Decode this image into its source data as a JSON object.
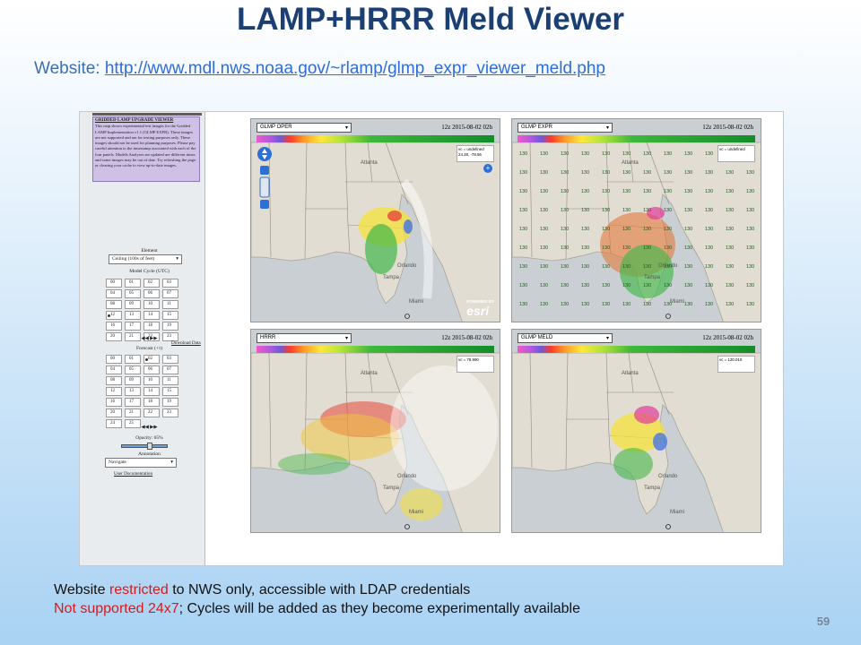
{
  "slide": {
    "title": "LAMP+HRRR Meld Viewer",
    "website_label": "Website: ",
    "website_url": "http://www.mdl.nws.noaa.gov/~rlamp/glmp_expr_viewer_meld.php",
    "page_number": "59"
  },
  "footer": {
    "line1_pre": "Website ",
    "line1_red": "restricted",
    "line1_post": " to NWS only, accessible with LDAP credentials",
    "line2_red": "Not supported 24x7",
    "line2_post": "; Cycles will be added as they become experimentally available"
  },
  "viewer": {
    "sidebar": {
      "info_title": "GRIDDED LAMP UPGRADE VIEWER",
      "info_text": "This map shows experimental test images for the Gridded LAMP Implementation v1.1 (GLMP EXPR). These images are not supported and are for testing purposes only. These images should not be used for planning purposes. Please pay careful attention to the timestamp associated with each of the four panels. Models Analyses are updated are different times and some images may be out of date. Try refreshing the page or clearing your cache to view up-to-date images.",
      "element_label": "Element",
      "element_value": "Ceiling (100s of feet)",
      "model_cycle_label": "Model Cycle (UTC)",
      "model_cycle_cells": [
        "00",
        "01",
        "02",
        "03",
        "04",
        "05",
        "06",
        "07",
        "08",
        "09",
        "10",
        "11",
        "12",
        "13",
        "14",
        "15",
        "16",
        "17",
        "18",
        "19",
        "20",
        "21",
        "22",
        "23"
      ],
      "model_cycle_selected": "12",
      "arrows": "◀◀  ▶▶",
      "download_label": "Download Data",
      "forecast_label": "Forecast (+τ)",
      "forecast_cells": [
        "00",
        "01",
        "02",
        "03",
        "04",
        "05",
        "06",
        "07",
        "08",
        "09",
        "10",
        "11",
        "12",
        "13",
        "14",
        "15",
        "16",
        "17",
        "18",
        "19",
        "20",
        "21",
        "22",
        "23",
        "24",
        "25"
      ],
      "forecast_selected": "02",
      "opacity_label": "Opacity: 65%",
      "opacity_value": 0.65,
      "annotation_label": "Annotation",
      "annotation_value": "Navigate",
      "user_doc_label": "User Documentation"
    },
    "panels": [
      {
        "model": "GLMP OPER",
        "time": "12z 2015-08-02 02h",
        "readout": "vc = undefined\n24.28, -78.56",
        "esri": true
      },
      {
        "model": "GLMP EXPR",
        "time": "12z 2015-08-02 02h",
        "readout": "vc = undefined",
        "esri": false
      },
      {
        "model": "HRRR",
        "time": "12z 2015-08-02 02h",
        "readout": "vc = 78.990",
        "esri": false
      },
      {
        "model": "GLMP MELD",
        "time": "12z 2015-08-02 02h",
        "readout": "vc = 120.010",
        "esri": false
      }
    ],
    "scale_ticks": [
      "0",
      "10",
      "20",
      "40",
      "60",
      "80",
      "100",
      "120"
    ],
    "cities": [
      "Atlanta",
      "Orlando",
      "Tampa",
      "Miami"
    ],
    "station_value": "130",
    "esri_text": "esri",
    "esri_powered": "POWERED BY",
    "colors": {
      "accent_title": "#1b3f73",
      "link": "#2f6dd9",
      "restricted": "#d91a1a"
    }
  }
}
